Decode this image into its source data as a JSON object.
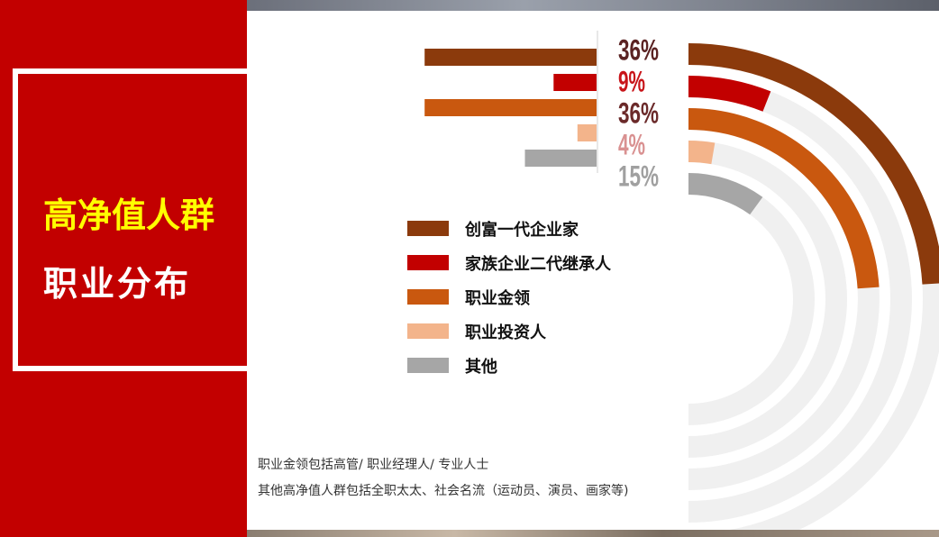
{
  "title": {
    "line1": "高净值人群",
    "line2": "职业分布"
  },
  "chart_data": {
    "type": "bar",
    "categories": [
      "创富一代企业家",
      "家族企业二代继承人",
      "职业金领",
      "职业投资人",
      "其他"
    ],
    "values": [
      36,
      9,
      36,
      4,
      15
    ],
    "value_labels": [
      "36%",
      "9%",
      "36%",
      "4%",
      "15%"
    ],
    "colors": [
      "#8b3a0c",
      "#c20000",
      "#c9580f",
      "#f3b48b",
      "#a6a6a6"
    ],
    "label_colors": [
      "#5b2323",
      "#c81419",
      "#6b2a2a",
      "#d99191",
      "#a0a0a0"
    ],
    "ring_track_color": "#f0f0f0",
    "ylim": [
      0,
      100
    ]
  },
  "notes": [
    "职业金领包括高管/ 职业经理人/ 专业人士",
    "其他高净值人群包括全职太太、社会名流（运动员、演员、画家等)"
  ]
}
